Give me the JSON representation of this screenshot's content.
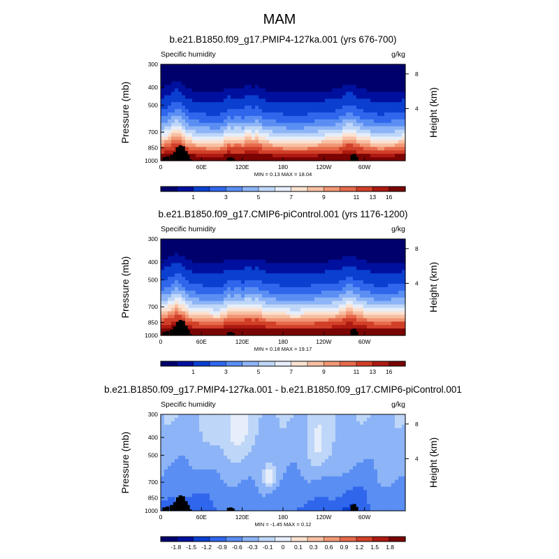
{
  "figure": {
    "title": "MAM"
  },
  "chart_data": [
    {
      "type": "heatmap",
      "title": "b.e21.B1850.f09_g17.PMIP4-127ka.001 (yrs 676-700)",
      "field_label": "Specific humidity",
      "units": "g/kg",
      "ylabel": "Pressure (mb)",
      "y2label": "Height (km)",
      "x_ticks": [
        "0",
        "60E",
        "120E",
        "180",
        "120W",
        "60W"
      ],
      "y_ticks": [
        "300",
        "400",
        "500",
        "700",
        "850",
        "1000"
      ],
      "y2_ticks": [
        "8",
        "4"
      ],
      "min_label": "MIN =",
      "min": "0.13",
      "max_label": "MAX =",
      "max": "18.04",
      "colorbar_labels": [
        "1",
        "3",
        "5",
        "7",
        "9",
        "11",
        "13",
        "16"
      ],
      "palette": "diverging",
      "field": "full"
    },
    {
      "type": "heatmap",
      "title": "b.e21.B1850.f09_g17.CMIP6-piControl.001 (yrs 1176-1200)",
      "field_label": "Specific humidity",
      "units": "g/kg",
      "ylabel": "Pressure (mb)",
      "y2label": "Height (km)",
      "x_ticks": [
        "0",
        "60E",
        "120E",
        "180",
        "120W",
        "60W"
      ],
      "y_ticks": [
        "300",
        "400",
        "500",
        "700",
        "850",
        "1000"
      ],
      "y2_ticks": [
        "8",
        "4"
      ],
      "min_label": "MIN =",
      "min": "0.18",
      "max_label": "MAX =",
      "max": "19.17",
      "colorbar_labels": [
        "1",
        "3",
        "5",
        "7",
        "9",
        "11",
        "13",
        "16"
      ],
      "palette": "diverging",
      "field": "full"
    },
    {
      "type": "heatmap",
      "title": "b.e21.B1850.f09_g17.PMIP4-127ka.001 - b.e21.B1850.f09_g17.CMIP6-piControl.001",
      "field_label": "Specific humidity",
      "units": "g/kg",
      "ylabel": "Pressure (mb)",
      "y2label": "Height (km)",
      "x_ticks": [
        "0",
        "60E",
        "120E",
        "180",
        "120W",
        "60W"
      ],
      "y_ticks": [
        "300",
        "400",
        "500",
        "700",
        "850",
        "1000"
      ],
      "y2_ticks": [
        "8",
        "4"
      ],
      "min_label": "MIN =",
      "min": "-1.45",
      "max_label": "MAX =",
      "max": "0.12",
      "colorbar_labels": [
        "-1.8",
        "-1.5",
        "-1.2",
        "-0.9",
        "-0.6",
        "-0.3",
        "-0.1",
        "0",
        "0.1",
        "0.3",
        "0.6",
        "0.9",
        "1.2",
        "1.5",
        "1.8"
      ],
      "palette": "diverging",
      "field": "difference"
    }
  ],
  "colors": {
    "diverging": [
      "#00006d",
      "#00109e",
      "#0a3fd0",
      "#2f66ec",
      "#5a8ef3",
      "#8db4f6",
      "#bed6f8",
      "#e6eefb",
      "#fbe2d0",
      "#f8c0a3",
      "#f19775",
      "#e66a4b",
      "#d13f29",
      "#ad1a12",
      "#7a0403"
    ],
    "terrain": "#000000"
  }
}
